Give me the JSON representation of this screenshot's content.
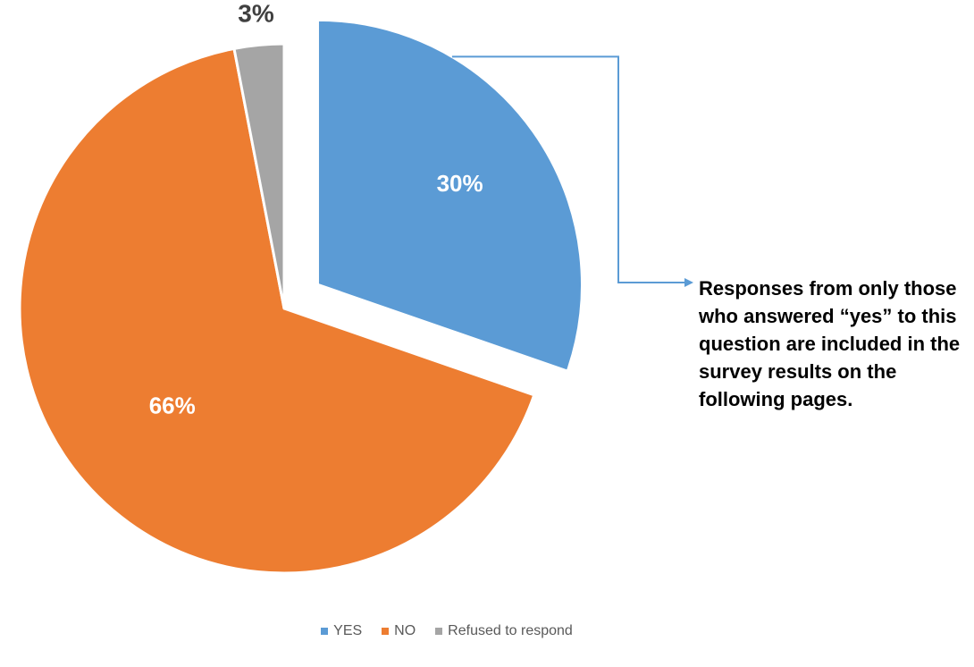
{
  "chart_data": {
    "type": "pie",
    "categories": [
      "YES",
      "NO",
      "Refused to respond"
    ],
    "values": [
      30,
      66,
      3
    ],
    "data_labels": [
      "30%",
      "66%",
      "3%"
    ],
    "colors": [
      "#5B9BD5",
      "#ED7D31",
      "#A5A5A5"
    ],
    "label_colors": [
      "#FFFFFF",
      "#FFFFFF",
      "#404040"
    ],
    "exploded": "YES",
    "legend_position": "bottom",
    "annotation": "Responses from only those who answered “yes” to this question are included in the survey results on the following pages."
  }
}
